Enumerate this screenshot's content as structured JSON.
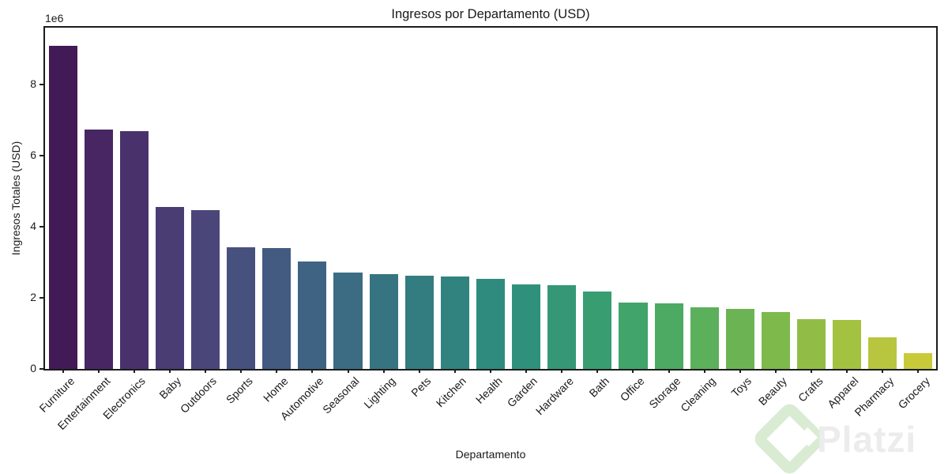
{
  "chart_data": {
    "type": "bar",
    "title": "Ingresos por Departamento (USD)",
    "xlabel": "Departamento",
    "ylabel": "Ingresos Totales (USD)",
    "y_offset_label": "1e6",
    "categories": [
      "Furniture",
      "Entertainment",
      "Electronics",
      "Baby",
      "Outdoors",
      "Sports",
      "Home",
      "Automotive",
      "Seasonal",
      "Lighting",
      "Pets",
      "Kitchen",
      "Health",
      "Garden",
      "Hardware",
      "Bath",
      "Office",
      "Storage",
      "Cleaning",
      "Toys",
      "Beauty",
      "Crafts",
      "Apparel",
      "Pharmacy",
      "Grocery"
    ],
    "values": [
      9080000,
      6730000,
      6680000,
      4550000,
      4460000,
      3420000,
      3410000,
      3030000,
      2720000,
      2670000,
      2620000,
      2610000,
      2530000,
      2380000,
      2360000,
      2180000,
      1860000,
      1840000,
      1740000,
      1680000,
      1600000,
      1390000,
      1380000,
      900000,
      440000
    ],
    "ylim": [
      0,
      9600000
    ],
    "yticks": [
      0,
      2000000,
      4000000,
      6000000,
      8000000
    ],
    "ytick_labels": [
      "0",
      "2",
      "4",
      "6",
      "8"
    ],
    "grid": false,
    "legend": "none",
    "bar_width_fraction": 0.8,
    "palette": [
      "#421a56",
      "#472663",
      "#49326c",
      "#4a3d74",
      "#4a467a",
      "#47517e",
      "#435b81",
      "#3f6483",
      "#3b6c83",
      "#377481",
      "#337c80",
      "#30837f",
      "#2e8b7d",
      "#2f917b",
      "#349877",
      "#389e72",
      "#41a46a",
      "#4caa63",
      "#5caf5b",
      "#6cb453",
      "#7eb94c",
      "#91bd46",
      "#a4c242",
      "#b7c63e",
      "#c9ca3a"
    ],
    "spine_color": "#1c1c1c",
    "text_color": "#1a1a1a"
  },
  "watermark": {
    "text": "Platzi",
    "logo_color": "#d9ecd3",
    "text_color": "#ececec"
  }
}
